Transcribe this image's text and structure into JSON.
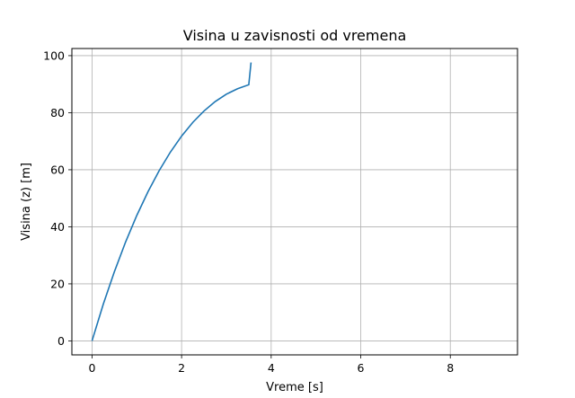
{
  "chart_data": {
    "type": "line",
    "title": "Visina u zavisnosti od vremena",
    "xlabel": "Vreme [s]",
    "ylabel": "Visina (z) [m]",
    "xlim": [
      -0.45,
      9.5
    ],
    "ylim": [
      -4.9,
      102.5
    ],
    "xticks": [
      0,
      2,
      4,
      6,
      8
    ],
    "yticks": [
      0,
      20,
      40,
      60,
      80,
      100
    ],
    "grid": true,
    "series": [
      {
        "color": "#1f77b4",
        "points": [
          [
            0.0,
            0.0
          ],
          [
            0.25,
            12.8
          ],
          [
            0.5,
            24.3
          ],
          [
            0.75,
            34.7
          ],
          [
            1.0,
            44.0
          ],
          [
            1.25,
            52.3
          ],
          [
            1.5,
            59.7
          ],
          [
            1.75,
            66.2
          ],
          [
            2.0,
            71.8
          ],
          [
            2.25,
            76.6
          ],
          [
            2.5,
            80.6
          ],
          [
            2.75,
            83.9
          ],
          [
            3.0,
            86.5
          ],
          [
            3.25,
            88.4
          ],
          [
            3.5,
            89.8
          ],
          [
            3.55,
            97.6
          ]
        ]
      }
    ]
  }
}
